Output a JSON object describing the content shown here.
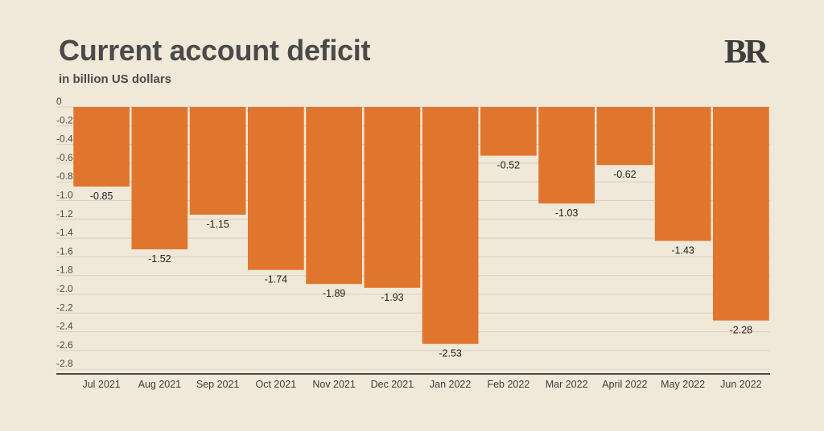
{
  "header": {
    "title": "Current account deficit",
    "subtitle": "in billion US dollars",
    "logo": "BR"
  },
  "colors": {
    "background": "#f0e8d8",
    "bar": "#e0762d",
    "grid": "#d9d0c0",
    "axis": "#4a4a4a"
  },
  "chart_data": {
    "type": "bar",
    "title": "Current account deficit",
    "subtitle": "in billion US dollars",
    "xlabel": "",
    "ylabel": "",
    "ylim": [
      -2.9,
      0
    ],
    "y_ticks": [
      "0",
      "-0.2",
      "-0.4",
      "-0.6",
      "-0.8",
      "-1.0",
      "-1.2",
      "-1.4",
      "-1.6",
      "-1.8",
      "-2.0",
      "-2.2",
      "-2.4",
      "-2.6",
      "-2.8"
    ],
    "grid": true,
    "categories": [
      "Jul 2021",
      "Aug 2021",
      "Sep 2021",
      "Oct 2021",
      "Nov 2021",
      "Dec 2021",
      "Jan 2022",
      "Feb 2022",
      "Mar 2022",
      "April 2022",
      "May 2022",
      "Jun 2022"
    ],
    "values": [
      -0.85,
      -1.52,
      -1.15,
      -1.74,
      -1.89,
      -1.93,
      -2.53,
      -0.52,
      -1.03,
      -0.62,
      -1.43,
      -2.28
    ],
    "value_labels": [
      "-0.85",
      "-1.52",
      "-1.15",
      "-1.74",
      "-1.89",
      "-1.93",
      "-2.53",
      "-0.52",
      "-1.03",
      "-0.62",
      "-1.43",
      "-2.28"
    ]
  }
}
